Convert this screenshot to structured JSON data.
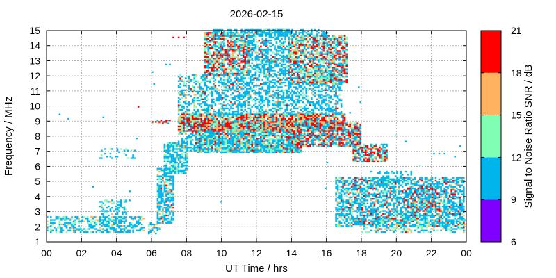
{
  "chart_data": {
    "type": "heatmap",
    "title": "2026-02-15",
    "xlabel": "UT Time / hrs",
    "ylabel": "Frequency / MHz",
    "xlim": [
      0,
      24
    ],
    "ylim": [
      1,
      15
    ],
    "x_ticks": [
      "00",
      "02",
      "04",
      "06",
      "08",
      "10",
      "12",
      "14",
      "16",
      "18",
      "20",
      "22",
      "00"
    ],
    "y_ticks": [
      "1",
      "2",
      "3",
      "4",
      "5",
      "6",
      "7",
      "8",
      "9",
      "10",
      "11",
      "12",
      "13",
      "14",
      "15"
    ],
    "grid": true,
    "colorbar": {
      "label": "Signal to Noise Ratio SNR / dB",
      "ticks": [
        "6",
        "9",
        "12",
        "15",
        "18",
        "21"
      ],
      "range": [
        6,
        21
      ],
      "bands": [
        {
          "from": 6,
          "to": 9,
          "color": "#8000ff"
        },
        {
          "from": 9,
          "to": 12,
          "color": "#00b4ec"
        },
        {
          "from": 12,
          "to": 15,
          "color": "#80ffb4"
        },
        {
          "from": 15,
          "to": 18,
          "color": "#ffb360"
        },
        {
          "from": 18,
          "to": 21,
          "color": "#ff0000"
        }
      ]
    },
    "regions": [
      {
        "t": [
          0,
          5.5
        ],
        "f": [
          1.6,
          2.7
        ],
        "d": 0.45,
        "w": [
          70,
          20,
          10,
          0
        ]
      },
      {
        "t": [
          3.0,
          4.5
        ],
        "f": [
          1.6,
          3.8
        ],
        "d": 0.35,
        "w": [
          75,
          20,
          5,
          0
        ]
      },
      {
        "t": [
          3.0,
          5.2
        ],
        "f": [
          6.5,
          7.2
        ],
        "d": 0.15,
        "w": [
          80,
          20,
          0,
          0
        ]
      },
      {
        "t": [
          5.8,
          6.4
        ],
        "f": [
          1.5,
          2.3
        ],
        "d": 0.5,
        "w": [
          60,
          25,
          15,
          0
        ]
      },
      {
        "t": [
          6.3,
          7.2
        ],
        "f": [
          2.2,
          5.8
        ],
        "d": 0.7,
        "w": [
          70,
          15,
          10,
          5
        ]
      },
      {
        "t": [
          6.7,
          8.0
        ],
        "f": [
          5.5,
          7.5
        ],
        "d": 0.7,
        "w": [
          75,
          20,
          5,
          0
        ]
      },
      {
        "t": [
          5.9,
          7.0
        ],
        "f": [
          8.8,
          9.1
        ],
        "d": 0.5,
        "w": [
          30,
          20,
          20,
          30
        ]
      },
      {
        "t": [
          7.5,
          9.0
        ],
        "f": [
          7.0,
          12.0
        ],
        "d": 0.45,
        "w": [
          70,
          20,
          7,
          3
        ]
      },
      {
        "t": [
          8.5,
          14.5
        ],
        "f": [
          6.9,
          8.8
        ],
        "d": 0.9,
        "w": [
          55,
          25,
          10,
          10
        ]
      },
      {
        "t": [
          7.5,
          17.0
        ],
        "f": [
          8.3,
          9.4
        ],
        "d": 0.85,
        "w": [
          20,
          20,
          25,
          35
        ]
      },
      {
        "t": [
          14.0,
          18.0
        ],
        "f": [
          7.3,
          8.8
        ],
        "d": 0.8,
        "w": [
          40,
          15,
          15,
          30
        ]
      },
      {
        "t": [
          9.0,
          16.8
        ],
        "f": [
          9.4,
          12.0
        ],
        "d": 0.5,
        "w": [
          75,
          15,
          7,
          3
        ]
      },
      {
        "t": [
          9.0,
          11.5
        ],
        "f": [
          12.0,
          14.8
        ],
        "d": 0.75,
        "w": [
          35,
          25,
          15,
          25
        ]
      },
      {
        "t": [
          11.5,
          13.8
        ],
        "f": [
          12.0,
          15.0
        ],
        "d": 0.55,
        "w": [
          75,
          15,
          5,
          5
        ]
      },
      {
        "t": [
          13.8,
          17.2
        ],
        "f": [
          11.5,
          14.6
        ],
        "d": 0.75,
        "w": [
          35,
          25,
          15,
          25
        ]
      },
      {
        "t": [
          9.5,
          16.0
        ],
        "f": [
          14.6,
          15.0
        ],
        "d": 0.5,
        "w": [
          90,
          10,
          0,
          0
        ]
      },
      {
        "t": [
          17.5,
          19.5
        ],
        "f": [
          6.3,
          7.4
        ],
        "d": 0.7,
        "w": [
          30,
          20,
          10,
          40
        ]
      },
      {
        "t": [
          16.5,
          23.9
        ],
        "f": [
          2.0,
          5.2
        ],
        "d": 0.65,
        "w": [
          70,
          12,
          8,
          10
        ]
      },
      {
        "t": [
          18.0,
          24.0
        ],
        "f": [
          1.6,
          2.5
        ],
        "d": 0.45,
        "w": [
          40,
          40,
          15,
          5
        ]
      },
      {
        "t": [
          18.5,
          21.0
        ],
        "f": [
          4.8,
          5.6
        ],
        "d": 0.3,
        "w": [
          90,
          10,
          0,
          0
        ]
      },
      {
        "t": [
          20.5,
          22.5
        ],
        "f": [
          3.0,
          4.5
        ],
        "d": 0.4,
        "w": [
          40,
          20,
          10,
          30
        ]
      }
    ],
    "isolated_points": [
      [
        7.2,
        14.5
      ],
      [
        7.5,
        14.5
      ],
      [
        7.8,
        14.5
      ],
      [
        6.8,
        12.7
      ],
      [
        7.0,
        12.7
      ],
      [
        6.0,
        12.2
      ],
      [
        6.1,
        11.4
      ],
      [
        5.2,
        9.9
      ],
      [
        1.2,
        9.1
      ],
      [
        0.7,
        9.4
      ],
      [
        3.2,
        9.2
      ],
      [
        4.4,
        6.8
      ],
      [
        2.6,
        4.6
      ],
      [
        4.7,
        4.3
      ],
      [
        4.7,
        3.7
      ],
      [
        4.0,
        3.1
      ],
      [
        3.6,
        3.0
      ],
      [
        9.9,
        3.6
      ],
      [
        15.9,
        4.5
      ],
      [
        11.3,
        10.3
      ],
      [
        12.3,
        10.2
      ],
      [
        17.8,
        11.2
      ],
      [
        17.3,
        9.5
      ],
      [
        19.9,
        8.0
      ],
      [
        20.5,
        7.6
      ],
      [
        22.1,
        6.8
      ],
      [
        22.4,
        6.8
      ],
      [
        23.6,
        7.3
      ],
      [
        21.3,
        6.0
      ],
      [
        16.8,
        9.5
      ],
      [
        17.9,
        10.2
      ],
      [
        4.4,
        7.0
      ],
      [
        5.1,
        7.8
      ],
      [
        23.3,
        6.6
      ],
      [
        22.7,
        6.8
      ],
      [
        16.0,
        6.2
      ],
      [
        4.1,
        6.9
      ],
      [
        0.9,
        2.6
      ],
      [
        3.6,
        6.8
      ]
    ]
  }
}
